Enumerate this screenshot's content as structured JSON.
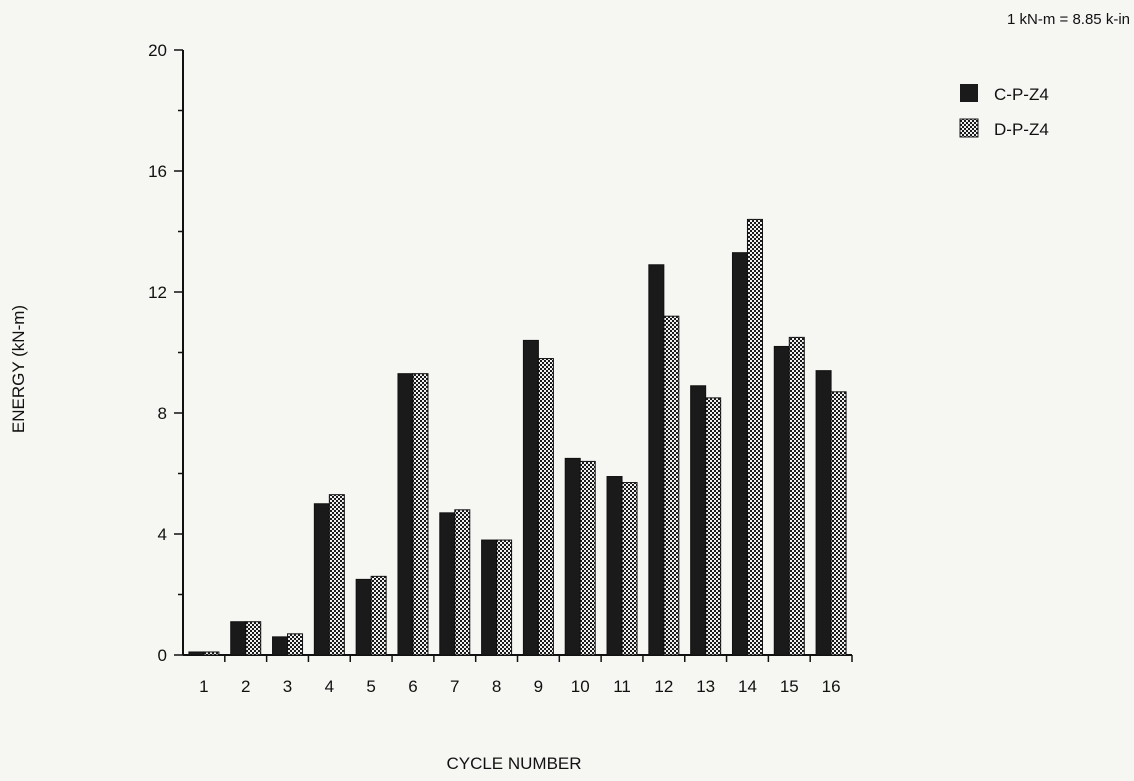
{
  "chart_data": {
    "type": "bar",
    "note": "1 kN-m = 8.85 k-in",
    "xlabel": "CYCLE NUMBER",
    "ylabel": "ENERGY (kN-m)",
    "ylim": [
      0,
      20
    ],
    "yticks": [
      0,
      4,
      8,
      12,
      16,
      20
    ],
    "grid": false,
    "legend_position": "top-right",
    "categories": [
      "1",
      "2",
      "3",
      "4",
      "5",
      "6",
      "7",
      "8",
      "9",
      "10",
      "11",
      "12",
      "13",
      "14",
      "15",
      "16"
    ],
    "series": [
      {
        "name": "C-P-Z4",
        "pattern": "solid",
        "color": "#1a1a1a",
        "values": [
          0.1,
          1.1,
          0.6,
          5.0,
          2.5,
          9.3,
          4.7,
          3.8,
          10.4,
          6.5,
          5.9,
          12.9,
          8.9,
          13.3,
          10.2,
          9.4
        ]
      },
      {
        "name": "D-P-Z4",
        "pattern": "checkered",
        "color": "#1a1a1a",
        "values": [
          0.1,
          1.1,
          0.7,
          5.3,
          2.6,
          9.3,
          4.8,
          3.8,
          9.8,
          6.4,
          5.7,
          11.2,
          8.5,
          14.4,
          10.5,
          8.7
        ]
      }
    ]
  }
}
